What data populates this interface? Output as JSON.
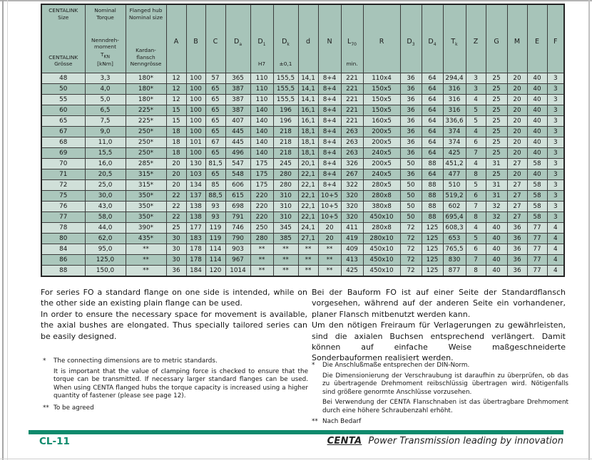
{
  "colors": {
    "accent": "#0e8a6c",
    "header_bg": "#a7c4b9",
    "row_light": "#d0e0d9",
    "row_dark": "#abc7bc"
  },
  "table": {
    "wide_headers": [
      {
        "en": "CENTALINK Size",
        "de": "CENTALINK Grösse"
      },
      {
        "en": "Nominal Torque",
        "de": "Nenndreh-moment",
        "symbol_base": "T",
        "symbol_sub": "KN",
        "unit": "[kNm]"
      },
      {
        "en": "Flanged hub Nominal size",
        "de": "Kardan-flansch Nenngrösse"
      }
    ],
    "letter_headers": [
      {
        "base": "A"
      },
      {
        "base": "B"
      },
      {
        "base": "C"
      },
      {
        "base": "D",
        "sub": "a"
      },
      {
        "base": "D",
        "sub": "1",
        "note": "H7"
      },
      {
        "base": "D",
        "sub": "k",
        "note": "±0,1"
      },
      {
        "base": "d"
      },
      {
        "base": "N"
      },
      {
        "base": "L",
        "sub": "70",
        "note": "min."
      },
      {
        "base": "R"
      },
      {
        "base": "D",
        "sub": "3"
      },
      {
        "base": "D",
        "sub": "4"
      },
      {
        "base": "T",
        "sub": "k"
      },
      {
        "base": "Z"
      },
      {
        "base": "G"
      },
      {
        "base": "M"
      },
      {
        "base": "E"
      },
      {
        "base": "F"
      }
    ],
    "rows": [
      [
        "48",
        "3,3",
        "180*",
        "12",
        "100",
        "57",
        "365",
        "110",
        "155,5",
        "14,1",
        "8+4",
        "221",
        "110x4",
        "36",
        "64",
        "294,4",
        "3",
        "25",
        "20",
        "40",
        "3"
      ],
      [
        "50",
        "4,0",
        "180*",
        "12",
        "100",
        "65",
        "387",
        "110",
        "155,5",
        "14,1",
        "8+4",
        "221",
        "150x5",
        "36",
        "64",
        "316",
        "3",
        "25",
        "20",
        "40",
        "3"
      ],
      [
        "55",
        "5,0",
        "180*",
        "12",
        "100",
        "65",
        "387",
        "110",
        "155,5",
        "14,1",
        "8+4",
        "221",
        "150x5",
        "36",
        "64",
        "316",
        "4",
        "25",
        "20",
        "40",
        "3"
      ],
      [
        "60",
        "6,5",
        "225*",
        "15",
        "100",
        "65",
        "387",
        "140",
        "196",
        "16,1",
        "8+4",
        "221",
        "150x5",
        "36",
        "64",
        "316",
        "5",
        "25",
        "20",
        "40",
        "3"
      ],
      [
        "65",
        "7,5",
        "225*",
        "15",
        "100",
        "65",
        "407",
        "140",
        "196",
        "16,1",
        "8+4",
        "221",
        "160x5",
        "36",
        "64",
        "336,6",
        "5",
        "25",
        "20",
        "40",
        "3"
      ],
      [
        "67",
        "9,0",
        "250*",
        "18",
        "100",
        "65",
        "445",
        "140",
        "218",
        "18,1",
        "8+4",
        "263",
        "200x5",
        "36",
        "64",
        "374",
        "4",
        "25",
        "20",
        "40",
        "3"
      ],
      [
        "68",
        "11,0",
        "250*",
        "18",
        "101",
        "67",
        "445",
        "140",
        "218",
        "18,1",
        "8+4",
        "263",
        "200x5",
        "36",
        "64",
        "374",
        "6",
        "25",
        "20",
        "40",
        "3"
      ],
      [
        "69",
        "15,5",
        "250*",
        "18",
        "100",
        "65",
        "496",
        "140",
        "218",
        "18,1",
        "8+4",
        "263",
        "240x5",
        "36",
        "64",
        "425",
        "7",
        "25",
        "20",
        "40",
        "3"
      ],
      [
        "70",
        "16,0",
        "285*",
        "20",
        "130",
        "81,5",
        "547",
        "175",
        "245",
        "20,1",
        "8+4",
        "326",
        "200x5",
        "50",
        "88",
        "451,2",
        "4",
        "31",
        "27",
        "58",
        "3"
      ],
      [
        "71",
        "20,5",
        "315*",
        "20",
        "103",
        "65",
        "548",
        "175",
        "280",
        "22,1",
        "8+4",
        "267",
        "240x5",
        "36",
        "64",
        "477",
        "8",
        "25",
        "20",
        "40",
        "3"
      ],
      [
        "72",
        "25,0",
        "315*",
        "20",
        "134",
        "85",
        "606",
        "175",
        "280",
        "22,1",
        "8+4",
        "322",
        "280x5",
        "50",
        "88",
        "510",
        "5",
        "31",
        "27",
        "58",
        "3"
      ],
      [
        "75",
        "30,0",
        "350*",
        "22",
        "137",
        "88,5",
        "615",
        "220",
        "310",
        "22,1",
        "10+5",
        "320",
        "280x8",
        "50",
        "88",
        "519,2",
        "6",
        "31",
        "27",
        "58",
        "3"
      ],
      [
        "76",
        "43,0",
        "350*",
        "22",
        "138",
        "93",
        "698",
        "220",
        "310",
        "22,1",
        "10+5",
        "320",
        "380x8",
        "50",
        "88",
        "602",
        "7",
        "32",
        "27",
        "58",
        "3"
      ],
      [
        "77",
        "58,0",
        "350*",
        "22",
        "138",
        "93",
        "791",
        "220",
        "310",
        "22,1",
        "10+5",
        "320",
        "450x10",
        "50",
        "88",
        "695,4",
        "8",
        "32",
        "27",
        "58",
        "3"
      ],
      [
        "78",
        "44,0",
        "390*",
        "25",
        "177",
        "119",
        "746",
        "250",
        "345",
        "24,1",
        "20",
        "411",
        "280x8",
        "72",
        "125",
        "608,3",
        "4",
        "40",
        "36",
        "77",
        "4"
      ],
      [
        "80",
        "62,0",
        "435*",
        "30",
        "183",
        "119",
        "790",
        "280",
        "385",
        "27,1",
        "20",
        "419",
        "280x10",
        "72",
        "125",
        "653",
        "5",
        "40",
        "36",
        "77",
        "4"
      ],
      [
        "84",
        "95,0",
        "**",
        "30",
        "178",
        "114",
        "903",
        "**",
        "**",
        "**",
        "**",
        "409",
        "450x10",
        "72",
        "125",
        "765,5",
        "6",
        "40",
        "36",
        "77",
        "4"
      ],
      [
        "86",
        "125,0",
        "**",
        "30",
        "178",
        "114",
        "967",
        "**",
        "**",
        "**",
        "**",
        "413",
        "450x10",
        "72",
        "125",
        "830",
        "7",
        "40",
        "36",
        "77",
        "4"
      ],
      [
        "88",
        "150,0",
        "**",
        "36",
        "184",
        "120",
        "1014",
        "**",
        "**",
        "**",
        "**",
        "425",
        "450x10",
        "72",
        "125",
        "877",
        "8",
        "40",
        "36",
        "77",
        "4"
      ]
    ]
  },
  "paragraphs": {
    "en": [
      "For series FO a standard flange on one side is intended, while on the other side an existing plain flange can be used.",
      "In order to ensure the necessary space for movement is available, the axial bushes are elongated. Thus specially tailored series can be easily designed."
    ],
    "de": [
      "Bei der Bauform FO ist auf einer Seite der Standardflansch vorgesehen, während auf der anderen Seite ein vorhandener, planer Flansch mitbenutzt werden kann.",
      "Um den nötigen Freiraum für Verlagerungen zu gewährleisten, sind die axialen Buchsen entsprechend verlängert. Damit können auf einfache Weise maßgeschneiderte Sonderbauformen realisiert werden."
    ]
  },
  "footnotes": {
    "en": [
      {
        "marker": "*",
        "text": "The connecting dimensions are to metric standards."
      },
      {
        "marker": "",
        "text": "It is important that the value of clamping force is checked to ensure that the torque can be transmitted. If necessary larger standard flanges can be used. When using CENTA flanged hubs the torque capacity is increased using a higher quantity of fastener (please see page 12)."
      },
      {
        "marker": "**",
        "text": "To be agreed"
      }
    ],
    "de": [
      {
        "marker": "*",
        "text": "Die Anschlußmaße entsprechen der DIN-Norm."
      },
      {
        "marker": "",
        "text": "Die Dimensionierung der Verschraubung ist daraufhin zu überprüfen, ob das zu übertragende Drehmoment reibschlüssig übertragen wird. Nötigenfalls sind größere genormte Anschlüsse vorzusehen."
      },
      {
        "marker": "",
        "text": "Bei Verwendung der CENTA Flanschnaben ist das übertragbare Drehmoment durch eine höhere Schraubenzahl erhöht."
      },
      {
        "marker": "**",
        "text": "Nach Bedarf"
      }
    ]
  },
  "footer": {
    "page_code": "CL-11",
    "brand": "CENTA",
    "tagline": "Power Transmission leading by innovation"
  }
}
